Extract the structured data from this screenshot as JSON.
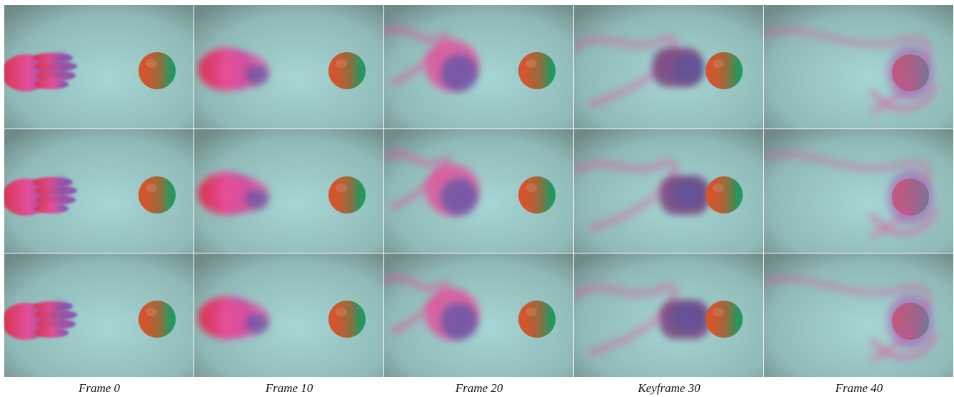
{
  "figure": {
    "captions": [
      "Frame 0",
      "Frame 10",
      "Frame 20",
      "Keyframe 30",
      "Frame 40"
    ],
    "rows": 3,
    "content": "smoke-hand-and-sphere-simulation-frames"
  },
  "colors": {
    "background_center": "#a6d6d4",
    "background_edge": "#6f8a88",
    "smoke_pink": "#e4509a",
    "smoke_red": "#d8324a",
    "smoke_blue": "#3c4fa8",
    "sphere_orange": "#d2552e",
    "sphere_green": "#1f9a62"
  }
}
